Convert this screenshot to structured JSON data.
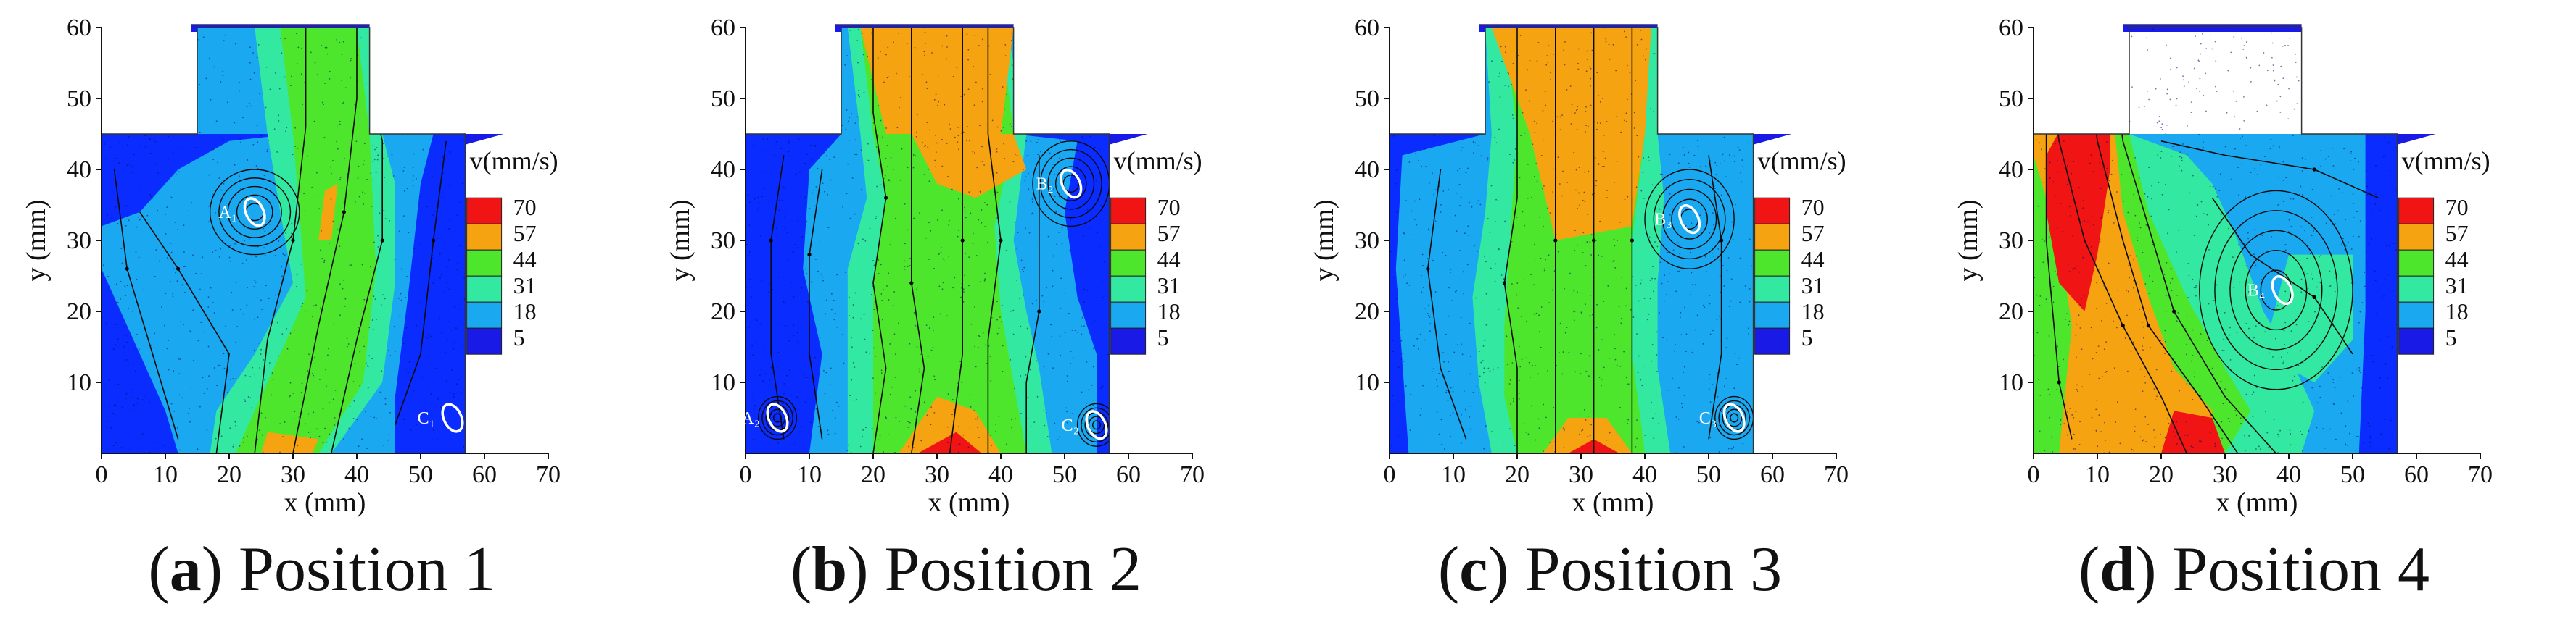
{
  "colors": {
    "c5": "#1a1ae6",
    "c18": "#1aa8f0",
    "c31": "#33e8a0",
    "c44": "#4ee62c",
    "c57": "#f5a311",
    "c70": "#f01414",
    "cLow": "#0a2cff"
  },
  "legend": {
    "title": "v(mm/s)",
    "levels": [
      "70",
      "57",
      "44",
      "31",
      "18",
      "5"
    ]
  },
  "chart_data": [
    {
      "type": "contour-streamline",
      "panel_letter": "a",
      "caption": "Position 1",
      "xlabel": "x (mm)",
      "ylabel": "y (mm)",
      "xlim": [
        0,
        70
      ],
      "ylim": [
        0,
        60
      ],
      "xticks": [
        "0",
        "10",
        "20",
        "30",
        "40",
        "50",
        "60",
        "70"
      ],
      "yticks": [
        "10",
        "20",
        "30",
        "40",
        "50",
        "60"
      ],
      "markers": [
        {
          "label": "A₁",
          "x": 24,
          "y": 34
        },
        {
          "label": "C₁",
          "x": 55,
          "y": 5
        }
      ]
    },
    {
      "type": "contour-streamline",
      "panel_letter": "b",
      "caption": "Position 2",
      "xlabel": "x (mm)",
      "ylabel": "y (mm)",
      "xlim": [
        0,
        70
      ],
      "ylim": [
        0,
        60
      ],
      "xticks": [
        "0",
        "10",
        "20",
        "30",
        "40",
        "50",
        "60",
        "70"
      ],
      "yticks": [
        "10",
        "20",
        "30",
        "40",
        "50",
        "60"
      ],
      "markers": [
        {
          "label": "A₂",
          "x": 5,
          "y": 5
        },
        {
          "label": "B₂",
          "x": 51,
          "y": 38
        },
        {
          "label": "C₂",
          "x": 55,
          "y": 4
        }
      ]
    },
    {
      "type": "contour-streamline",
      "panel_letter": "c",
      "caption": "Position 3",
      "xlabel": "x (mm)",
      "ylabel": "y (mm)",
      "xlim": [
        0,
        70
      ],
      "ylim": [
        0,
        60
      ],
      "xticks": [
        "0",
        "10",
        "20",
        "30",
        "40",
        "50",
        "60",
        "70"
      ],
      "yticks": [
        "10",
        "20",
        "30",
        "40",
        "50",
        "60"
      ],
      "markers": [
        {
          "label": "B₃",
          "x": 47,
          "y": 33
        },
        {
          "label": "C₃",
          "x": 54,
          "y": 5
        }
      ]
    },
    {
      "type": "contour-streamline",
      "panel_letter": "d",
      "caption": "Position 4",
      "xlabel": "x (mm)",
      "ylabel": "y (mm)",
      "xlim": [
        0,
        70
      ],
      "ylim": [
        0,
        60
      ],
      "xticks": [
        "0",
        "10",
        "20",
        "30",
        "40",
        "50",
        "60",
        "70"
      ],
      "yticks": [
        "10",
        "20",
        "30",
        "40",
        "50",
        "60"
      ],
      "markers": [
        {
          "label": "B₄",
          "x": 39,
          "y": 23
        }
      ]
    }
  ]
}
